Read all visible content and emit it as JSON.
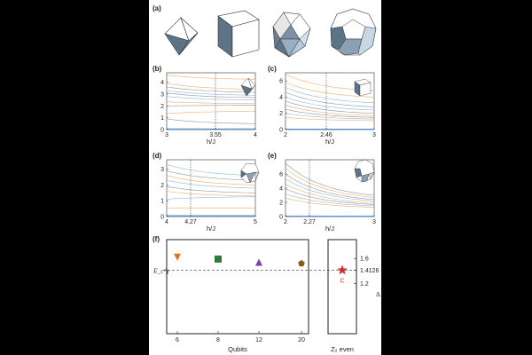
{
  "panel_labels": {
    "a": "(a)",
    "b": "(b)",
    "c": "(c)",
    "d": "(d)",
    "e": "(e)",
    "f": "(f)"
  },
  "colors": {
    "orange": "#f4a45e",
    "blue": "#7fb5e3",
    "gray": "#8a8a8a",
    "solid_blue": "#4a90d9"
  },
  "chart_data": [
    {
      "id": "b",
      "type": "line",
      "xlabel": "h/J",
      "xlim": [
        3,
        4
      ],
      "ylim": [
        0,
        4.8
      ],
      "x_ticks": [
        "3",
        "3.55",
        "4"
      ],
      "x_tick_values": [
        3,
        3.55,
        4
      ],
      "y_ticks": [
        "0",
        "1",
        "2",
        "3",
        "4"
      ],
      "y_tick_values": [
        0,
        1,
        2,
        3,
        4
      ],
      "critical_x": 3.55,
      "series": [
        {
          "color": "orange",
          "values": [
            4.6,
            4.25
          ]
        },
        {
          "color": "orange",
          "values": [
            3.9,
            3.4
          ]
        },
        {
          "color": "gray",
          "values": [
            3.6,
            3.15
          ]
        },
        {
          "color": "blue",
          "values": [
            3.3,
            2.9
          ]
        },
        {
          "color": "gray",
          "values": [
            3.1,
            2.7
          ]
        },
        {
          "color": "blue",
          "values": [
            2.8,
            2.5
          ]
        },
        {
          "color": "orange",
          "values": [
            2.35,
            2.2
          ]
        },
        {
          "color": "gray",
          "values": [
            2.0,
            2.05
          ]
        },
        {
          "color": "orange",
          "values": [
            1.35,
            1.55
          ]
        },
        {
          "color": "gray",
          "values": [
            0.9,
            0.5
          ]
        },
        {
          "color": "solid_blue",
          "values": [
            0.05,
            0.05
          ]
        }
      ]
    },
    {
      "id": "c",
      "type": "line",
      "xlabel": "h/J",
      "xlim": [
        2,
        3
      ],
      "ylim": [
        0,
        7
      ],
      "x_ticks": [
        "2",
        "2.46",
        "3"
      ],
      "x_tick_values": [
        2,
        2.46,
        3
      ],
      "y_ticks": [
        "0",
        "2",
        "4",
        "6"
      ],
      "y_tick_values": [
        0,
        2,
        4,
        6
      ],
      "critical_x": 2.46,
      "series": [
        {
          "color": "orange",
          "values": [
            6.8,
            4.8
          ]
        },
        {
          "color": "orange",
          "values": [
            5.8,
            4.0
          ]
        },
        {
          "color": "blue",
          "values": [
            5.2,
            3.3
          ]
        },
        {
          "color": "gray",
          "values": [
            4.6,
            2.8
          ]
        },
        {
          "color": "blue",
          "values": [
            4.0,
            2.4
          ]
        },
        {
          "color": "gray",
          "values": [
            3.5,
            2.0
          ]
        },
        {
          "color": "orange",
          "values": [
            3.0,
            1.7
          ]
        },
        {
          "color": "gray",
          "values": [
            2.5,
            1.5
          ]
        },
        {
          "color": "blue",
          "values": [
            2.0,
            1.3
          ]
        },
        {
          "color": "orange",
          "values": [
            1.5,
            1.1
          ]
        },
        {
          "color": "solid_blue",
          "values": [
            0.05,
            0.05
          ]
        }
      ]
    },
    {
      "id": "d",
      "type": "line",
      "xlabel": "h/J",
      "xlim": [
        4,
        5
      ],
      "ylim": [
        0,
        3.6
      ],
      "x_ticks": [
        "4",
        "4.27",
        "5"
      ],
      "x_tick_values": [
        4,
        4.27,
        5
      ],
      "y_ticks": [
        "0",
        "1",
        "2",
        "3"
      ],
      "y_tick_values": [
        0,
        1,
        2,
        3
      ],
      "critical_x": 4.27,
      "series": [
        {
          "color": "blue",
          "values": [
            3.3,
            2.6
          ]
        },
        {
          "color": "gray",
          "values": [
            2.9,
            2.3
          ]
        },
        {
          "color": "orange",
          "values": [
            2.6,
            2.0
          ]
        },
        {
          "color": "blue",
          "values": [
            2.3,
            1.8
          ]
        },
        {
          "color": "gray",
          "values": [
            1.9,
            1.5
          ]
        },
        {
          "color": "orange",
          "values": [
            1.6,
            1.3
          ]
        },
        {
          "color": "blue",
          "values": [
            1.1,
            1.25
          ]
        },
        {
          "color": "orange",
          "values": [
            0.55,
            0.55
          ]
        },
        {
          "color": "solid_blue",
          "values": [
            0.05,
            0.05
          ]
        }
      ]
    },
    {
      "id": "e",
      "type": "line",
      "xlabel": "h/J",
      "xlim": [
        2,
        3
      ],
      "ylim": [
        0,
        8
      ],
      "x_ticks": [
        "2",
        "2.27",
        "3"
      ],
      "x_tick_values": [
        2,
        2.27,
        3
      ],
      "y_ticks": [
        "0",
        "2",
        "4",
        "6"
      ],
      "y_tick_values": [
        0,
        2,
        4,
        6
      ],
      "critical_x": 2.27,
      "series": [
        {
          "color": "gray",
          "values": [
            7.5,
            3.0
          ]
        },
        {
          "color": "orange",
          "values": [
            6.8,
            2.7
          ]
        },
        {
          "color": "gray",
          "values": [
            6.0,
            2.4
          ]
        },
        {
          "color": "blue",
          "values": [
            5.3,
            2.2
          ]
        },
        {
          "color": "orange",
          "values": [
            4.6,
            1.9
          ]
        },
        {
          "color": "gray",
          "values": [
            3.9,
            1.7
          ]
        },
        {
          "color": "blue",
          "values": [
            3.2,
            1.5
          ]
        },
        {
          "color": "orange",
          "values": [
            2.6,
            1.3
          ]
        },
        {
          "color": "solid_blue",
          "values": [
            0.05,
            0.05
          ]
        }
      ]
    },
    {
      "id": "f",
      "type": "scatter",
      "xlabel": "Qubits",
      "x_ticks": [
        "6",
        "8",
        "12",
        "20"
      ],
      "x_tick_values": [
        6,
        8,
        12,
        20
      ],
      "y_label": "E_c^γ",
      "right_xlabel": "Z₂ even",
      "right_ylabel": "Δ",
      "right_y_ticks": [
        "1.6",
        "1.4126",
        "1.2"
      ],
      "right_y_tick_values": [
        1.6,
        1.4126,
        1.2
      ],
      "ylim": [
        0.4,
        1.9
      ],
      "reference_y": 1.4126,
      "points": [
        {
          "x": 6,
          "y": 1.62,
          "marker": "triangle-down",
          "color": "#e8701a"
        },
        {
          "x": 8,
          "y": 1.59,
          "marker": "square",
          "color": "#2e7d32"
        },
        {
          "x": 12,
          "y": 1.54,
          "marker": "triangle-up",
          "color": "#7b3fb5"
        },
        {
          "x": 20,
          "y": 1.52,
          "marker": "pentagon",
          "color": "#8a5a18"
        }
      ],
      "critical_point": {
        "y": 1.4126,
        "marker": "star",
        "color": "#d32f2f",
        "label": "C"
      }
    }
  ]
}
